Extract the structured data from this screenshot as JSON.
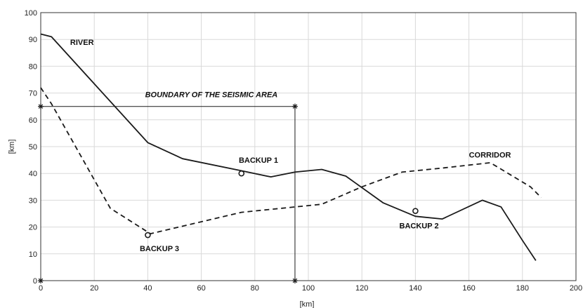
{
  "chart_data": {
    "type": "line",
    "title": "",
    "xlabel": "[km]",
    "ylabel": "[km]",
    "xlim": [
      0,
      200
    ],
    "ylim": [
      0,
      100
    ],
    "xticks": [
      0,
      20,
      40,
      60,
      80,
      100,
      120,
      140,
      160,
      180,
      200
    ],
    "yticks": [
      0,
      10,
      20,
      30,
      40,
      50,
      60,
      70,
      80,
      90,
      100
    ],
    "grid": true,
    "colors": {
      "line": "#1a1a1a",
      "grid": "#d9d9d9",
      "axis": "#333333"
    },
    "series": [
      {
        "name": "RIVER",
        "style": "solid",
        "x": [
          0,
          4,
          40,
          53,
          75,
          86,
          95,
          105,
          114,
          128,
          140,
          150,
          165,
          172,
          180,
          185
        ],
        "y": [
          92,
          91,
          51.5,
          45.5,
          41,
          38.7,
          40.5,
          41.5,
          39,
          29,
          24,
          23,
          30,
          27.5,
          15,
          7.5
        ]
      },
      {
        "name": "CORRIDOR",
        "style": "dashed",
        "x": [
          0,
          4,
          26,
          41,
          75,
          95,
          105,
          120,
          135,
          150,
          168,
          183,
          187
        ],
        "y": [
          72,
          66,
          27,
          17.5,
          25.5,
          27.5,
          28.5,
          35,
          40.5,
          42,
          44,
          35,
          31
        ]
      },
      {
        "name": "BOUNDARY OF THE SEISMIC AREA",
        "style": "solid-thin",
        "x": [
          0,
          95,
          95
        ],
        "y": [
          65,
          65,
          0
        ]
      }
    ],
    "corner_markers": [
      {
        "x": 0,
        "y": 65
      },
      {
        "x": 95,
        "y": 65
      },
      {
        "x": 0,
        "y": 0
      },
      {
        "x": 95,
        "y": 0
      }
    ],
    "points": [
      {
        "name": "BACKUP 1",
        "x": 75,
        "y": 40
      },
      {
        "name": "BACKUP 2",
        "x": 140,
        "y": 26
      },
      {
        "name": "BACKUP 3",
        "x": 40,
        "y": 17
      }
    ],
    "annotations": [
      {
        "text": "RIVER",
        "x": 11,
        "y": 88,
        "italic": false
      },
      {
        "text": "BOUNDARY OF THE SEISMIC AREA",
        "x": 39,
        "y": 68.5,
        "italic": true
      },
      {
        "text": "BACKUP 1",
        "x": 74,
        "y": 44,
        "italic": false
      },
      {
        "text": "CORRIDOR",
        "x": 160,
        "y": 46,
        "italic": false
      },
      {
        "text": "BACKUP 2",
        "x": 134,
        "y": 19.5,
        "italic": false
      },
      {
        "text": "BACKUP 3",
        "x": 37,
        "y": 11,
        "italic": false
      }
    ]
  }
}
